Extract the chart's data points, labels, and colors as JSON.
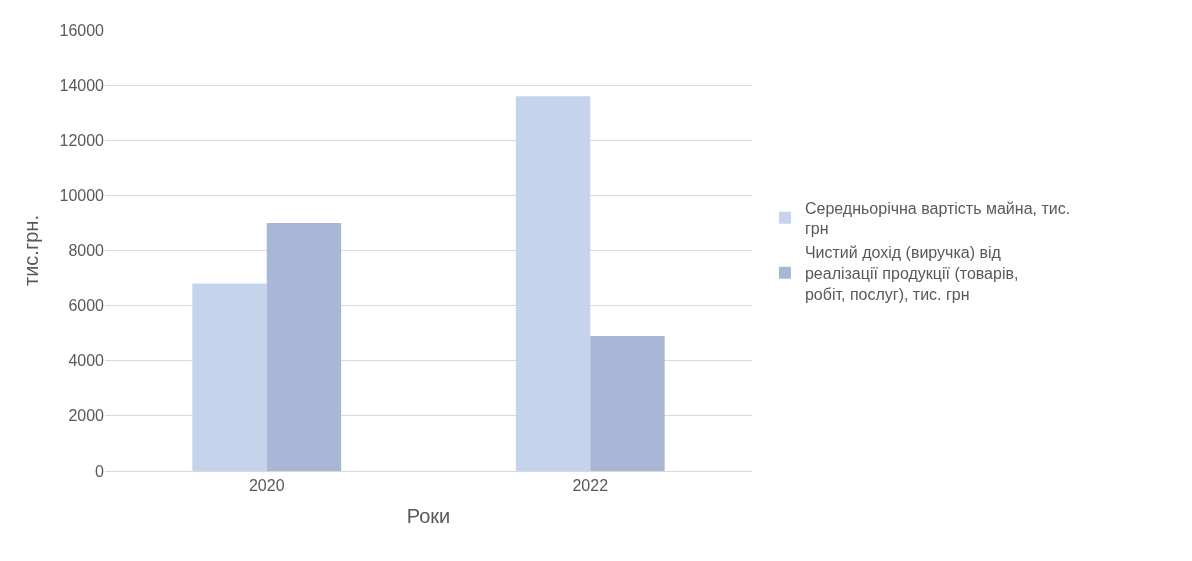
{
  "chart_data": {
    "type": "bar",
    "xlabel": "Роки",
    "ylabel": "тис.грн.",
    "categories": [
      "2020",
      "2022"
    ],
    "series": [
      {
        "name": "Середньорічна вартість майна, тис. грн",
        "color": "#c5d3ec",
        "values": [
          6800,
          13600
        ]
      },
      {
        "name": "Чистий дохід (виручка) від реалізації продукції (товарів, робіт, послуг), тис. грн",
        "color": "#a9b7d6",
        "values": [
          9000,
          4900
        ]
      }
    ],
    "ylim": [
      0,
      16000
    ],
    "yticks": [
      0,
      2000,
      4000,
      6000,
      8000,
      10000,
      12000,
      14000,
      16000
    ],
    "grid": "y",
    "legend": "right"
  }
}
